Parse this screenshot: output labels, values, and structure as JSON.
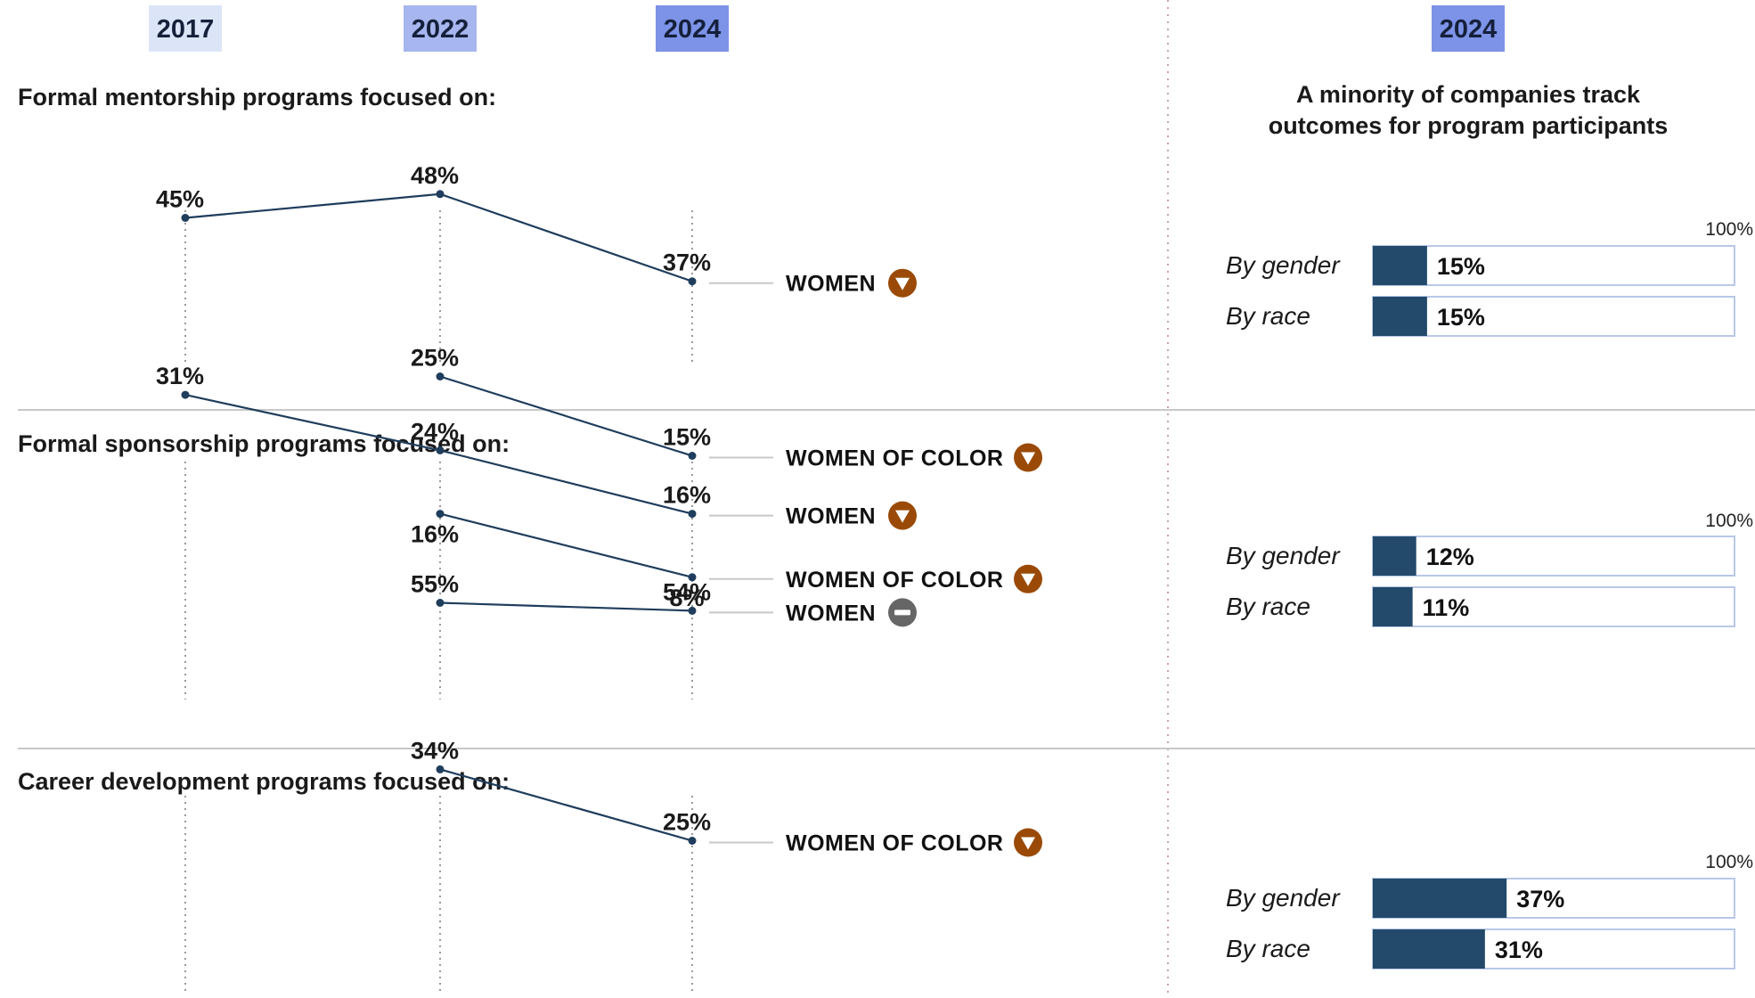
{
  "years": [
    "2017",
    "2022",
    "2024"
  ],
  "right_year": "2024",
  "right_title_lines": [
    "A minority of companies track",
    "outcomes for program participants"
  ],
  "full_scale_label": "100%",
  "colors": {
    "line": "#1f3d5c",
    "bar": "#234a6b",
    "bar_outline": "#b8c8e8",
    "down_icon": "#9a4a06",
    "flat_icon": "#666666",
    "badge_2017": "#dce5f8",
    "badge_2022": "#a7b6ef",
    "badge_2024": "#7d93e8"
  },
  "chart_data": [
    {
      "type": "line",
      "title": "Formal mentorship programs focused on:",
      "x": [
        "2017",
        "2022",
        "2024"
      ],
      "series": [
        {
          "name": "WOMEN",
          "values": [
            45,
            48,
            37
          ],
          "labels": [
            "45%",
            "48%",
            "37%"
          ],
          "trend": "down"
        },
        {
          "name": "WOMEN OF COLOR",
          "values": [
            null,
            25,
            15
          ],
          "labels": [
            null,
            "25%",
            "15%"
          ],
          "trend": "down"
        }
      ],
      "tracking": {
        "type": "bar",
        "categories": [
          "By gender",
          "By race"
        ],
        "values": [
          15,
          15
        ],
        "labels": [
          "15%",
          "15%"
        ],
        "max": 100
      }
    },
    {
      "type": "line",
      "title": "Formal sponsorship programs focused on:",
      "x": [
        "2017",
        "2022",
        "2024"
      ],
      "series": [
        {
          "name": "WOMEN",
          "values": [
            31,
            24,
            16
          ],
          "labels": [
            "31%",
            "24%",
            "16%"
          ],
          "trend": "down"
        },
        {
          "name": "WOMEN OF COLOR",
          "values": [
            null,
            16,
            8
          ],
          "labels": [
            null,
            "16%",
            "8%"
          ],
          "trend": "down"
        }
      ],
      "tracking": {
        "type": "bar",
        "categories": [
          "By gender",
          "By race"
        ],
        "values": [
          12,
          11
        ],
        "labels": [
          "12%",
          "11%"
        ],
        "max": 100
      }
    },
    {
      "type": "line",
      "title": "Career development programs focused on:",
      "x": [
        "2017",
        "2022",
        "2024"
      ],
      "series": [
        {
          "name": "WOMEN",
          "values": [
            null,
            55,
            54
          ],
          "labels": [
            null,
            "55%",
            "54%"
          ],
          "trend": "flat"
        },
        {
          "name": "WOMEN OF COLOR",
          "values": [
            null,
            34,
            25
          ],
          "labels": [
            null,
            "34%",
            "25%"
          ],
          "trend": "down"
        }
      ],
      "tracking": {
        "type": "bar",
        "categories": [
          "By gender",
          "By race"
        ],
        "values": [
          37,
          31
        ],
        "labels": [
          "37%",
          "31%"
        ],
        "max": 100
      }
    }
  ]
}
